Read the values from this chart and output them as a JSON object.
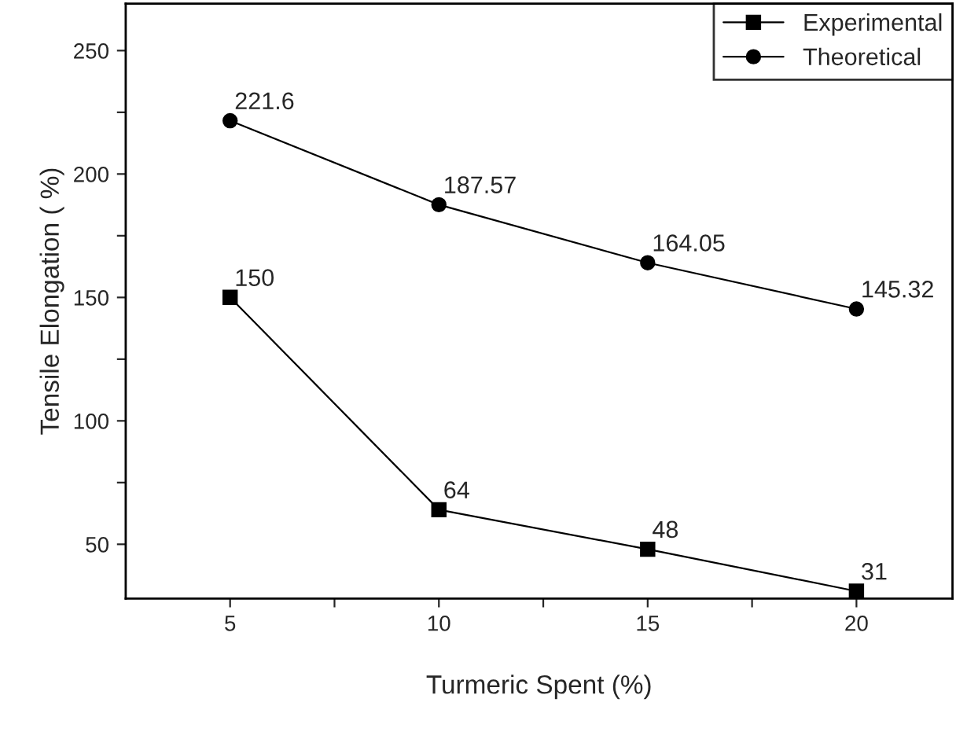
{
  "chart_data": {
    "type": "line",
    "xlabel": "Turmeric Spent (%)",
    "ylabel": "Tensile Elongation ( %)",
    "x": [
      5,
      10,
      15,
      20
    ],
    "series": [
      {
        "name": "Experimental",
        "color": "#000000",
        "marker": "square",
        "values": [
          150,
          64,
          48,
          31
        ],
        "value_labels": [
          "150",
          "64",
          "48",
          "31"
        ]
      },
      {
        "name": "Theoretical",
        "color": "#000000",
        "marker": "circle",
        "values": [
          221.6,
          187.57,
          164.05,
          145.32
        ],
        "value_labels": [
          "221.6",
          "187.57",
          "164.05",
          "145.32"
        ]
      }
    ],
    "xlim": [
      2.5,
      22.3
    ],
    "ylim": [
      28,
      269
    ],
    "xticks": [
      5,
      {
        "value": 7.5,
        "label": null
      },
      10,
      {
        "value": 12.5,
        "label": null
      },
      15,
      {
        "value": 17.5,
        "label": null
      },
      20
    ],
    "yticks": [
      50,
      {
        "value": 75,
        "label": null
      },
      100,
      {
        "value": 125,
        "label": null
      },
      150,
      {
        "value": 175,
        "label": null
      },
      200,
      {
        "value": 225,
        "label": null
      },
      250
    ],
    "legend": "top right",
    "grid": false,
    "line_style": "solid"
  }
}
